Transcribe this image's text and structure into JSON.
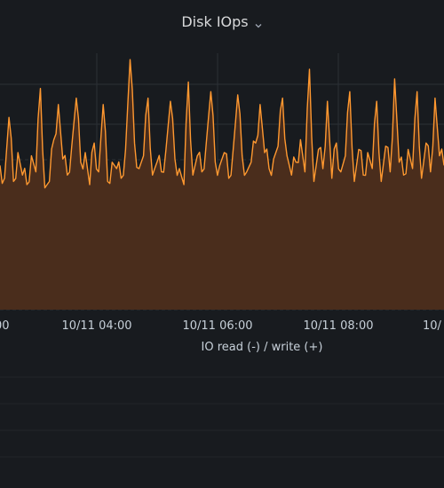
{
  "panel": {
    "title": "Disk IOps",
    "menu_icon": "chevron-down-icon"
  },
  "colors": {
    "background": "#181b1f",
    "series_line": "#ff9830",
    "series_fill": "#4a2d1c",
    "grid": "#2c3035"
  },
  "chart_data": {
    "type": "area",
    "title": "Disk IOps",
    "xlabel": "IO read (-) / write (+)",
    "ylabel": "",
    "x_ticks": [
      "00",
      "10/11 04:00",
      "10/11 06:00",
      "10/11 08:00",
      "10/"
    ],
    "grid": true,
    "legend": "none",
    "series": [
      {
        "values": [
          225,
          205,
          230,
          200,
          245,
          210,
          195,
          240,
          215,
          250,
          190,
          200,
          265,
          180,
          235,
          210,
          255,
          200,
          230,
          245,
          195,
          260,
          215,
          240,
          200,
          230,
          220,
          205,
          250,
          195,
          260,
          220,
          240,
          270,
          210,
          230,
          215,
          250,
          200,
          235,
          220,
          195,
          255,
          210,
          240,
          215,
          260,
          200,
          230,
          225,
          245,
          205,
          250,
          190,
          240,
          215,
          230,
          260,
          200,
          245,
          220,
          235,
          255,
          200,
          240,
          210,
          230,
          265,
          215,
          245,
          200,
          250,
          220,
          235,
          205,
          260,
          215,
          240,
          230,
          200,
          250,
          210,
          245,
          220,
          235,
          200,
          255,
          215,
          240,
          230,
          210,
          250,
          220,
          245,
          205,
          260,
          215,
          235,
          240,
          225
        ]
      }
    ],
    "spikes": [
      {
        "idx": 2,
        "value": 300
      },
      {
        "idx": 9,
        "value": 345
      },
      {
        "idx": 13,
        "value": 320
      },
      {
        "idx": 17,
        "value": 330
      },
      {
        "idx": 23,
        "value": 320
      },
      {
        "idx": 29,
        "value": 390
      },
      {
        "idx": 33,
        "value": 330
      },
      {
        "idx": 38,
        "value": 325
      },
      {
        "idx": 42,
        "value": 355
      },
      {
        "idx": 47,
        "value": 340
      },
      {
        "idx": 53,
        "value": 335
      },
      {
        "idx": 58,
        "value": 320
      },
      {
        "idx": 63,
        "value": 330
      },
      {
        "idx": 69,
        "value": 375
      },
      {
        "idx": 73,
        "value": 325
      },
      {
        "idx": 78,
        "value": 340
      },
      {
        "idx": 84,
        "value": 325
      },
      {
        "idx": 88,
        "value": 360
      },
      {
        "idx": 93,
        "value": 340
      },
      {
        "idx": 97,
        "value": 330
      }
    ]
  }
}
